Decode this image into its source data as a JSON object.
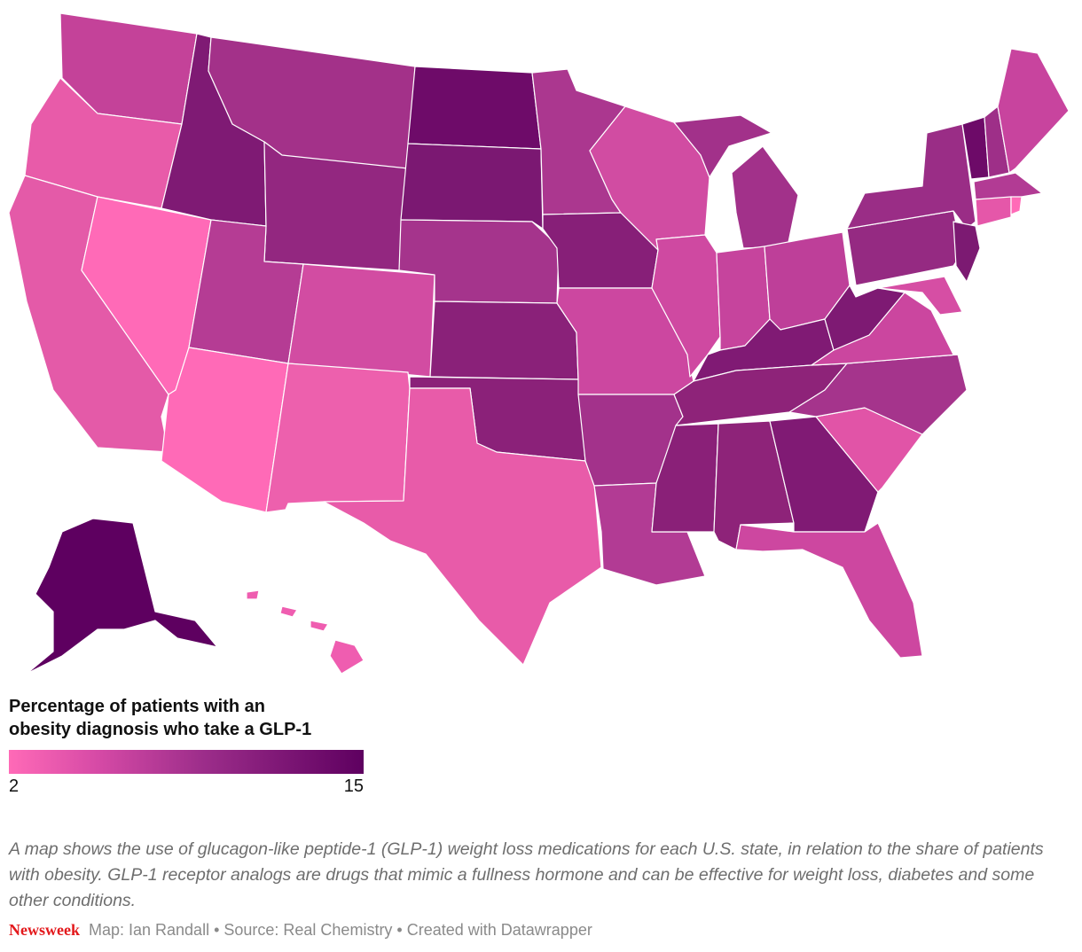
{
  "colors": {
    "scale_low": "#ff6ab7",
    "scale_mid": "#9c2d8a",
    "scale_high": "#5e0060",
    "brand": "#e3191c"
  },
  "legend": {
    "title_line1": "Percentage of patients with an",
    "title_line2": "obesity diagnosis who take a GLP-1",
    "min_label": "2",
    "max_label": "15",
    "min": 2,
    "max": 15
  },
  "description": "A map shows the use of glucagon-like peptide-1 (GLP-1) weight loss medications for each U.S. state, in relation to the share of patients with obesity. GLP-1 receptor analogs are drugs that mimic a fullness hormone and can be effective for weight loss, diabetes and some other conditions.",
  "footer": {
    "brand": "Newsweek",
    "credits": "Map: Ian Randall • Source: Real Chemistry • Created with Datawrapper"
  }
}
